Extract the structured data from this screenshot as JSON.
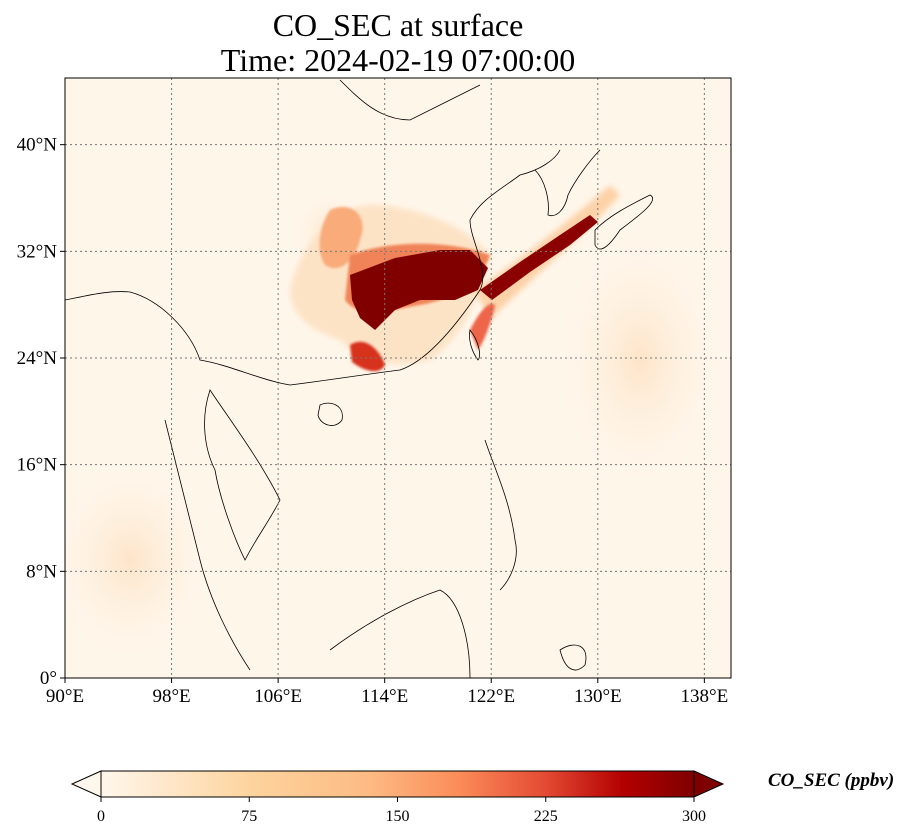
{
  "title": {
    "line1": "CO_SEC at surface",
    "line2": "Time: 2024-02-19 07:00:00"
  },
  "map": {
    "lon_range": [
      90,
      140
    ],
    "lat_range": [
      0,
      45
    ],
    "gridlines": "dotted",
    "x_ticks": [
      "90°E",
      "98°E",
      "106°E",
      "114°E",
      "122°E",
      "130°E",
      "138°E"
    ],
    "y_ticks": [
      "0°",
      "8°N",
      "16°N",
      "24°N",
      "32°N",
      "40°N"
    ],
    "x_tick_values": [
      90,
      98,
      106,
      114,
      122,
      130,
      138
    ],
    "y_tick_values": [
      0,
      8,
      16,
      24,
      32,
      40
    ],
    "colormap": "OrRd",
    "colors": {
      "low": "#fff7ec",
      "mid": "#fdbb84",
      "high": "#7f0000",
      "coast": "#000000"
    }
  },
  "colorbar": {
    "label": "CO_SEC (ppbv)",
    "min": 0,
    "max": 300,
    "extend": "both",
    "ticks": [
      "0",
      "75",
      "150",
      "225",
      "300"
    ]
  }
}
